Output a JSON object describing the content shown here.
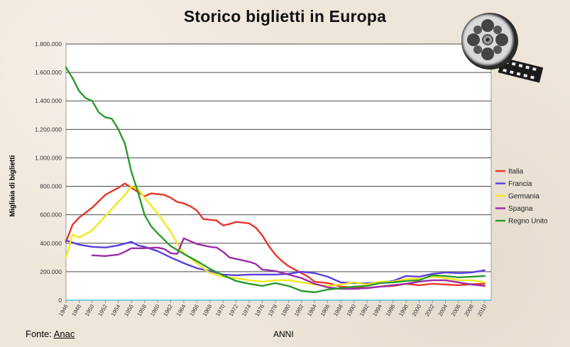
{
  "title": "Storico biglietti in Europa",
  "source_label": "Fonte:",
  "source_link": "Anac",
  "film_reel_icon": "film-reel-icon",
  "chart_data": {
    "type": "line",
    "title": "Storico biglietti in Europa",
    "xlabel": "ANNI",
    "ylabel": "Migliaia di biglietti",
    "xlim": [
      1946,
      2011
    ],
    "ylim": [
      0,
      1800000
    ],
    "y_ticks": [
      0,
      200000,
      400000,
      600000,
      800000,
      1000000,
      1200000,
      1400000,
      1600000,
      1800000
    ],
    "y_tick_labels": [
      "0",
      "200.000",
      "400.000",
      "600.000",
      "800.000",
      "1.000.000",
      "1.200.000",
      "1.400.000",
      "1.600.000",
      "1.800.000"
    ],
    "x_ticks": [
      1946,
      1948,
      1950,
      1952,
      1954,
      1956,
      1958,
      1960,
      1962,
      1964,
      1966,
      1968,
      1970,
      1972,
      1974,
      1976,
      1978,
      1980,
      1982,
      1984,
      1986,
      1988,
      1990,
      1992,
      1994,
      1996,
      1998,
      2000,
      2002,
      2004,
      2006,
      2008,
      2010
    ],
    "grid": true,
    "legend_position": "right",
    "series": [
      {
        "name": "Italia",
        "color": "#e8352a",
        "points": [
          [
            1946,
            410000
          ],
          [
            1947,
            530000
          ],
          [
            1948,
            580000
          ],
          [
            1950,
            650000
          ],
          [
            1952,
            740000
          ],
          [
            1954,
            790000
          ],
          [
            1955,
            820000
          ],
          [
            1956,
            790000
          ],
          [
            1957,
            760000
          ],
          [
            1958,
            730000
          ],
          [
            1959,
            750000
          ],
          [
            1960,
            745000
          ],
          [
            1961,
            740000
          ],
          [
            1962,
            720000
          ],
          [
            1963,
            690000
          ],
          [
            1964,
            680000
          ],
          [
            1965,
            660000
          ],
          [
            1966,
            630000
          ],
          [
            1967,
            570000
          ],
          [
            1968,
            565000
          ],
          [
            1969,
            560000
          ],
          [
            1970,
            525000
          ],
          [
            1971,
            535000
          ],
          [
            1972,
            550000
          ],
          [
            1973,
            545000
          ],
          [
            1974,
            540000
          ],
          [
            1975,
            510000
          ],
          [
            1976,
            455000
          ],
          [
            1977,
            380000
          ],
          [
            1978,
            320000
          ],
          [
            1979,
            275000
          ],
          [
            1980,
            240000
          ],
          [
            1981,
            215000
          ],
          [
            1982,
            190000
          ],
          [
            1983,
            165000
          ],
          [
            1984,
            130000
          ],
          [
            1986,
            120000
          ],
          [
            1988,
            95000
          ],
          [
            1990,
            90000
          ],
          [
            1992,
            85000
          ],
          [
            1994,
            95000
          ],
          [
            1996,
            100000
          ],
          [
            1998,
            115000
          ],
          [
            2000,
            105000
          ],
          [
            2002,
            115000
          ],
          [
            2004,
            110000
          ],
          [
            2006,
            105000
          ],
          [
            2008,
            112000
          ],
          [
            2010,
            115000
          ]
        ]
      },
      {
        "name": "Francia",
        "color": "#5a3fe0",
        "points": [
          [
            1946,
            420000
          ],
          [
            1948,
            390000
          ],
          [
            1950,
            375000
          ],
          [
            1952,
            370000
          ],
          [
            1954,
            385000
          ],
          [
            1956,
            410000
          ],
          [
            1957,
            385000
          ],
          [
            1958,
            375000
          ],
          [
            1960,
            345000
          ],
          [
            1962,
            300000
          ],
          [
            1964,
            260000
          ],
          [
            1966,
            225000
          ],
          [
            1968,
            205000
          ],
          [
            1970,
            180000
          ],
          [
            1972,
            175000
          ],
          [
            1974,
            180000
          ],
          [
            1976,
            180000
          ],
          [
            1978,
            180000
          ],
          [
            1980,
            185000
          ],
          [
            1982,
            200000
          ],
          [
            1984,
            190000
          ],
          [
            1986,
            165000
          ],
          [
            1988,
            125000
          ],
          [
            1990,
            120000
          ],
          [
            1992,
            118000
          ],
          [
            1994,
            125000
          ],
          [
            1996,
            135000
          ],
          [
            1998,
            170000
          ],
          [
            2000,
            165000
          ],
          [
            2002,
            185000
          ],
          [
            2004,
            195000
          ],
          [
            2006,
            190000
          ],
          [
            2008,
            195000
          ],
          [
            2010,
            210000
          ]
        ]
      },
      {
        "name": "Germania",
        "color": "#f2e81a",
        "points": [
          [
            1946,
            300000
          ],
          [
            1947,
            460000
          ],
          [
            1948,
            440000
          ],
          [
            1950,
            490000
          ],
          [
            1952,
            590000
          ],
          [
            1954,
            690000
          ],
          [
            1955,
            740000
          ],
          [
            1956,
            800000
          ],
          [
            1957,
            780000
          ],
          [
            1958,
            720000
          ],
          [
            1960,
            610000
          ],
          [
            1962,
            480000
          ],
          [
            1963,
            400000
          ],
          [
            1964,
            330000
          ],
          [
            1966,
            260000
          ],
          [
            1968,
            190000
          ],
          [
            1970,
            165000
          ],
          [
            1972,
            155000
          ],
          [
            1974,
            140000
          ],
          [
            1976,
            130000
          ],
          [
            1978,
            140000
          ],
          [
            1980,
            140000
          ],
          [
            1982,
            125000
          ],
          [
            1984,
            110000
          ],
          [
            1986,
            100000
          ],
          [
            1988,
            110000
          ],
          [
            1990,
            125000
          ],
          [
            1992,
            110000
          ],
          [
            1994,
            130000
          ],
          [
            1996,
            130000
          ],
          [
            1998,
            150000
          ],
          [
            2000,
            150000
          ],
          [
            2002,
            165000
          ],
          [
            2004,
            155000
          ],
          [
            2006,
            140000
          ],
          [
            2008,
            140000
          ],
          [
            2010,
            125000
          ]
        ]
      },
      {
        "name": "Spagna",
        "color": "#9b2ca8",
        "points": [
          [
            1950,
            315000
          ],
          [
            1952,
            310000
          ],
          [
            1954,
            320000
          ],
          [
            1955,
            340000
          ],
          [
            1956,
            365000
          ],
          [
            1958,
            365000
          ],
          [
            1960,
            370000
          ],
          [
            1961,
            360000
          ],
          [
            1962,
            330000
          ],
          [
            1963,
            325000
          ],
          [
            1964,
            435000
          ],
          [
            1966,
            395000
          ],
          [
            1968,
            375000
          ],
          [
            1969,
            370000
          ],
          [
            1970,
            340000
          ],
          [
            1971,
            300000
          ],
          [
            1972,
            290000
          ],
          [
            1974,
            270000
          ],
          [
            1975,
            255000
          ],
          [
            1976,
            215000
          ],
          [
            1978,
            205000
          ],
          [
            1980,
            180000
          ],
          [
            1982,
            155000
          ],
          [
            1984,
            115000
          ],
          [
            1986,
            90000
          ],
          [
            1988,
            80000
          ],
          [
            1990,
            80000
          ],
          [
            1992,
            85000
          ],
          [
            1994,
            95000
          ],
          [
            1996,
            105000
          ],
          [
            1998,
            115000
          ],
          [
            2000,
            130000
          ],
          [
            2002,
            140000
          ],
          [
            2004,
            140000
          ],
          [
            2006,
            125000
          ],
          [
            2008,
            110000
          ],
          [
            2010,
            100000
          ]
        ]
      },
      {
        "name": "Regno Unito",
        "color": "#2a9a2a",
        "points": [
          [
            1946,
            1635000
          ],
          [
            1947,
            1560000
          ],
          [
            1948,
            1470000
          ],
          [
            1949,
            1420000
          ],
          [
            1950,
            1400000
          ],
          [
            1951,
            1320000
          ],
          [
            1952,
            1285000
          ],
          [
            1953,
            1275000
          ],
          [
            1954,
            1200000
          ],
          [
            1955,
            1100000
          ],
          [
            1956,
            900000
          ],
          [
            1957,
            760000
          ],
          [
            1958,
            600000
          ],
          [
            1959,
            520000
          ],
          [
            1960,
            470000
          ],
          [
            1962,
            380000
          ],
          [
            1964,
            325000
          ],
          [
            1966,
            275000
          ],
          [
            1968,
            220000
          ],
          [
            1970,
            175000
          ],
          [
            1972,
            135000
          ],
          [
            1974,
            115000
          ],
          [
            1976,
            100000
          ],
          [
            1978,
            120000
          ],
          [
            1980,
            100000
          ],
          [
            1982,
            65000
          ],
          [
            1983,
            60000
          ],
          [
            1984,
            55000
          ],
          [
            1986,
            75000
          ],
          [
            1988,
            85000
          ],
          [
            1990,
            95000
          ],
          [
            1992,
            100000
          ],
          [
            1994,
            120000
          ],
          [
            1996,
            125000
          ],
          [
            1998,
            135000
          ],
          [
            2000,
            140000
          ],
          [
            2002,
            175000
          ],
          [
            2004,
            170000
          ],
          [
            2006,
            160000
          ],
          [
            2008,
            165000
          ],
          [
            2010,
            170000
          ]
        ]
      }
    ]
  }
}
